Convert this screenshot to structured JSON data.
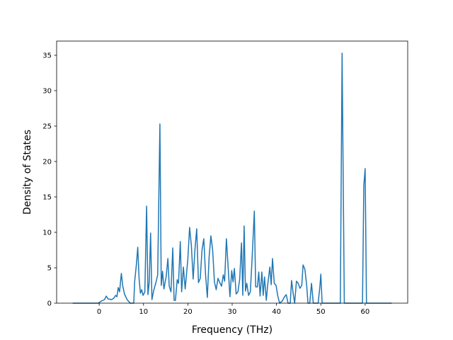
{
  "chart_data": {
    "type": "line",
    "title": "",
    "xlabel": "Frequency (THz)",
    "ylabel": "Density of States",
    "xlim": [
      -9.6,
      69.6
    ],
    "ylim": [
      0,
      37
    ],
    "xticks": [
      0,
      10,
      20,
      30,
      40,
      50,
      60
    ],
    "yticks": [
      0,
      5,
      10,
      15,
      20,
      25,
      30,
      35
    ],
    "grid": false,
    "legend": "none",
    "line_color": "#1f77b4",
    "series": [
      {
        "name": "",
        "points": [
          [
            -6,
            0
          ],
          [
            -0.2,
            0
          ],
          [
            0.5,
            0.3
          ],
          [
            1.2,
            0.5
          ],
          [
            1.6,
            1.0
          ],
          [
            2.0,
            0.6
          ],
          [
            2.8,
            0.5
          ],
          [
            3.3,
            0.7
          ],
          [
            3.7,
            1.1
          ],
          [
            4.0,
            0.9
          ],
          [
            4.3,
            2.2
          ],
          [
            4.6,
            1.6
          ],
          [
            5.0,
            4.2
          ],
          [
            5.3,
            2.5
          ],
          [
            5.7,
            1.3
          ],
          [
            6.3,
            0.5
          ],
          [
            7.0,
            0
          ],
          [
            7.8,
            0
          ],
          [
            8.0,
            3.0
          ],
          [
            8.4,
            5.5
          ],
          [
            8.7,
            7.9
          ],
          [
            9.0,
            3.5
          ],
          [
            9.3,
            1.4
          ],
          [
            9.6,
            1.9
          ],
          [
            9.9,
            1.1
          ],
          [
            10.3,
            1.6
          ],
          [
            10.7,
            13.7
          ],
          [
            11.0,
            1.2
          ],
          [
            11.3,
            3.0
          ],
          [
            11.6,
            9.9
          ],
          [
            11.9,
            0.5
          ],
          [
            12.3,
            1.8
          ],
          [
            12.8,
            2.9
          ],
          [
            13.2,
            4.0
          ],
          [
            13.7,
            25.3
          ],
          [
            14.0,
            2.5
          ],
          [
            14.3,
            4.5
          ],
          [
            14.6,
            2.0
          ],
          [
            15.1,
            3.7
          ],
          [
            15.5,
            6.3
          ],
          [
            15.8,
            2.4
          ],
          [
            16.2,
            1.6
          ],
          [
            16.6,
            7.8
          ],
          [
            16.9,
            0.4
          ],
          [
            17.2,
            0.4
          ],
          [
            17.6,
            3.3
          ],
          [
            17.9,
            2.8
          ],
          [
            18.3,
            8.7
          ],
          [
            18.6,
            1.6
          ],
          [
            19.0,
            5.1
          ],
          [
            19.4,
            2.0
          ],
          [
            20.0,
            6.2
          ],
          [
            20.4,
            10.7
          ],
          [
            20.8,
            8.1
          ],
          [
            21.2,
            3.4
          ],
          [
            21.6,
            7.5
          ],
          [
            22.0,
            10.5
          ],
          [
            22.4,
            2.9
          ],
          [
            22.8,
            3.5
          ],
          [
            23.2,
            7.5
          ],
          [
            23.6,
            9.1
          ],
          [
            24.0,
            4.0
          ],
          [
            24.4,
            0.8
          ],
          [
            24.8,
            6.5
          ],
          [
            25.2,
            9.5
          ],
          [
            25.6,
            7.5
          ],
          [
            26.0,
            3.0
          ],
          [
            26.4,
            1.9
          ],
          [
            26.8,
            3.5
          ],
          [
            27.2,
            2.9
          ],
          [
            27.6,
            2.4
          ],
          [
            28.0,
            4.0
          ],
          [
            28.3,
            3.1
          ],
          [
            28.7,
            9.1
          ],
          [
            29.1,
            5.0
          ],
          [
            29.5,
            0.9
          ],
          [
            29.9,
            4.6
          ],
          [
            30.2,
            3.0
          ],
          [
            30.5,
            4.9
          ],
          [
            30.9,
            1.3
          ],
          [
            31.3,
            1.6
          ],
          [
            31.7,
            3.4
          ],
          [
            32.1,
            8.5
          ],
          [
            32.4,
            1.1
          ],
          [
            32.7,
            10.9
          ],
          [
            33.0,
            1.7
          ],
          [
            33.3,
            2.8
          ],
          [
            33.7,
            1.1
          ],
          [
            34.1,
            1.6
          ],
          [
            34.5,
            6.3
          ],
          [
            35.0,
            13.0
          ],
          [
            35.3,
            2.3
          ],
          [
            35.7,
            2.3
          ],
          [
            36.0,
            4.4
          ],
          [
            36.3,
            1.0
          ],
          [
            36.7,
            4.4
          ],
          [
            37.0,
            1.1
          ],
          [
            37.3,
            3.7
          ],
          [
            37.7,
            0.4
          ],
          [
            38.0,
            2.5
          ],
          [
            38.5,
            5.1
          ],
          [
            38.8,
            2.6
          ],
          [
            39.1,
            6.3
          ],
          [
            39.5,
            2.8
          ],
          [
            39.9,
            2.5
          ],
          [
            40.3,
            1.0
          ],
          [
            40.7,
            0
          ],
          [
            41.3,
            0.3
          ],
          [
            41.8,
            0.9
          ],
          [
            42.2,
            1.2
          ],
          [
            42.6,
            0
          ],
          [
            43.1,
            0
          ],
          [
            43.4,
            3.2
          ],
          [
            43.8,
            1.2
          ],
          [
            44.1,
            0
          ],
          [
            44.5,
            3.1
          ],
          [
            44.9,
            2.8
          ],
          [
            45.3,
            2.1
          ],
          [
            45.7,
            2.5
          ],
          [
            46.0,
            5.4
          ],
          [
            46.4,
            4.8
          ],
          [
            46.8,
            2.6
          ],
          [
            47.1,
            0
          ],
          [
            47.5,
            0
          ],
          [
            47.9,
            2.8
          ],
          [
            48.3,
            0
          ],
          [
            49.4,
            0
          ],
          [
            49.8,
            2.4
          ],
          [
            50.0,
            4.1
          ],
          [
            50.3,
            0
          ],
          [
            54.0,
            0
          ],
          [
            54.4,
            0
          ],
          [
            54.8,
            35.3
          ],
          [
            55.3,
            0
          ],
          [
            58.8,
            0
          ],
          [
            59.4,
            0
          ],
          [
            59.7,
            16.6
          ],
          [
            60.0,
            19.0
          ],
          [
            60.3,
            0
          ],
          [
            66.0,
            0
          ]
        ]
      }
    ]
  }
}
